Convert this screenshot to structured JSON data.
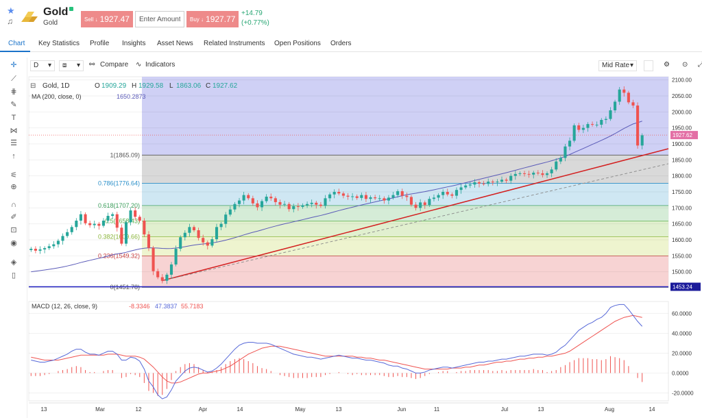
{
  "header": {
    "title": "Gold",
    "subtitle": "Gold",
    "sell_prefix": "Sell ↓",
    "sell_price": "1927.47",
    "amount_placeholder": "Enter Amount",
    "buy_prefix": "Buy ↓",
    "buy_price": "1927.77",
    "change_abs": "+14.79",
    "change_pct": "(+0.77%)"
  },
  "tabs": [
    {
      "label": "Chart"
    },
    {
      "label": "Key Statistics"
    },
    {
      "label": "Profile"
    },
    {
      "label": "Insights"
    },
    {
      "label": "Asset News"
    },
    {
      "label": "Related Instruments"
    },
    {
      "label": "Open Positions"
    },
    {
      "label": "Orders"
    }
  ],
  "toolbar": {
    "interval": "D",
    "compare_label": "Compare",
    "indicators_label": "Indicators",
    "rate_label": "Mid Rate"
  },
  "colors": {
    "up": "#26a69a",
    "down": "#ef5350",
    "accent": "#1a73c9",
    "trend": "#d32020",
    "ma": "#5a5ab8",
    "macd": "#5668d8",
    "signal": "#ef5350"
  },
  "chart_data": [
    {
      "type": "candlestick",
      "legend": {
        "symbol": "Gold, 1D",
        "open_label": "O",
        "open": "1909.29",
        "high_label": "H",
        "high": "1929.58",
        "low_label": "L",
        "low": "1863.06",
        "close_label": "C",
        "close": "1927.62"
      },
      "ma_label": "MA (200, close, 0)",
      "ma_value": "1650.2873",
      "y_ticks": [
        "2100.00",
        "2050.00",
        "2000.00",
        "1950.00",
        "1900.00",
        "1850.00",
        "1800.00",
        "1750.00",
        "1700.00",
        "1650.00",
        "1600.00",
        "1550.00",
        "1500.00"
      ],
      "ylim": [
        1450,
        2110
      ],
      "last_price_label": "1927.62",
      "last_price": 1927.62,
      "low_line_label": "1453.24",
      "low_line": 1453.24,
      "fib_levels": [
        {
          "label": "1(1865.09)",
          "value": 1865.09,
          "fill": "#d9d9d9"
        },
        {
          "label": "0.786(1776.64)",
          "value": 1776.64,
          "fill": "#cfe7f3"
        },
        {
          "label": "0.618(1707.20)",
          "value": 1707.2,
          "fill": "#d5ecd7"
        },
        {
          "label": "0.5(1658.43)",
          "value": 1658.43,
          "fill": "#e1f0cf"
        },
        {
          "label": "0.382(1609.66)",
          "value": 1609.66,
          "fill": "#eef4cf"
        },
        {
          "label": "0.236(1549.32)",
          "value": 1549.32,
          "fill": "#f7d3d3"
        },
        {
          "label": "0(1451.78)",
          "value": 1451.78,
          "fill": ""
        }
      ],
      "closes": [
        1572,
        1566,
        1570,
        1574,
        1580,
        1586,
        1597,
        1612,
        1624,
        1640,
        1660,
        1680,
        1652,
        1646,
        1650,
        1644,
        1660,
        1675,
        1680,
        1638,
        1588,
        1655,
        1692,
        1672,
        1660,
        1617,
        1575,
        1502,
        1483,
        1472,
        1491,
        1523,
        1572,
        1608,
        1622,
        1640,
        1630,
        1606,
        1592,
        1582,
        1602,
        1640,
        1650,
        1679,
        1695,
        1712,
        1723,
        1740,
        1730,
        1714,
        1702,
        1721,
        1735,
        1730,
        1718,
        1710,
        1712,
        1696,
        1705,
        1703,
        1708,
        1712,
        1716,
        1710,
        1706,
        1730,
        1742,
        1750,
        1745,
        1738,
        1735,
        1736,
        1731,
        1740,
        1728,
        1733,
        1730,
        1730,
        1723,
        1732,
        1740,
        1752,
        1738,
        1734,
        1710,
        1700,
        1717,
        1709,
        1728,
        1732,
        1740,
        1750,
        1742,
        1738,
        1756,
        1764,
        1770,
        1773,
        1780,
        1776,
        1775,
        1782,
        1780,
        1782,
        1788,
        1785,
        1800,
        1806,
        1808,
        1806,
        1804,
        1810,
        1808,
        1803,
        1808,
        1820,
        1845,
        1856,
        1892,
        1910,
        1958,
        1944,
        1950,
        1962,
        1960,
        1960,
        1975,
        1978,
        2005,
        2032,
        2070,
        2060,
        2030,
        2020,
        1895,
        1927
      ],
      "annotations": [
        "trend-line-red",
        "trend-line-dashed",
        "fibonacci-retracement"
      ]
    },
    {
      "type": "line",
      "title": "MACD (12, 26, close, 9)",
      "values_display": [
        "-8.3346",
        "47.3837",
        "55.7183"
      ],
      "y_ticks": [
        "60.0000",
        "40.0000",
        "20.0000",
        "0.0000",
        "-20.0000"
      ],
      "ylim": [
        -28,
        72
      ],
      "series": [
        {
          "name": "MACD",
          "values": [
            13,
            12,
            11,
            11,
            12,
            13,
            15,
            17,
            19,
            22,
            24,
            24,
            21,
            19,
            19,
            18,
            20,
            22,
            22,
            19,
            13,
            13,
            16,
            15,
            12,
            4,
            -8,
            -14,
            -22,
            -26,
            -24,
            -17,
            -8,
            -3,
            2,
            5,
            6,
            5,
            3,
            1,
            2,
            5,
            9,
            14,
            19,
            24,
            28,
            30,
            31,
            31,
            30,
            30,
            30,
            29,
            27,
            25,
            23,
            21,
            19,
            18,
            17,
            16,
            16,
            15,
            14,
            15,
            16,
            17,
            18,
            17,
            16,
            15,
            15,
            14,
            13,
            13,
            12,
            11,
            10,
            8,
            7,
            7,
            5,
            4,
            2,
            0,
            0,
            1,
            3,
            4,
            5,
            6,
            6,
            5,
            6,
            7,
            8,
            9,
            10,
            11,
            11,
            12,
            12,
            13,
            14,
            14,
            15,
            16,
            17,
            17,
            18,
            19,
            19,
            19,
            18,
            19,
            21,
            25,
            28,
            33,
            38,
            43,
            46,
            49,
            51,
            54,
            56,
            60,
            66,
            68,
            69,
            69,
            64,
            58,
            52,
            47
          ]
        },
        {
          "name": "Signal",
          "values": [
            16,
            15,
            14,
            13,
            13,
            13,
            13,
            14,
            15,
            16,
            17,
            18,
            18,
            18,
            18,
            18,
            18,
            19,
            19,
            19,
            18,
            17,
            17,
            17,
            16,
            14,
            10,
            6,
            1,
            -4,
            -8,
            -10,
            -10,
            -9,
            -7,
            -5,
            -3,
            -1,
            0,
            0,
            1,
            2,
            3,
            5,
            7,
            10,
            13,
            16,
            19,
            21,
            23,
            25,
            26,
            27,
            27,
            27,
            26,
            25,
            24,
            23,
            22,
            21,
            20,
            19,
            18,
            17,
            17,
            17,
            17,
            17,
            17,
            17,
            16,
            16,
            15,
            15,
            14,
            13,
            13,
            12,
            11,
            10,
            9,
            8,
            7,
            6,
            5,
            4,
            4,
            4,
            4,
            4,
            4,
            5,
            5,
            5,
            6,
            6,
            7,
            8,
            8,
            9,
            10,
            11,
            11,
            12,
            12,
            13,
            14,
            14,
            15,
            15,
            16,
            16,
            17,
            17,
            18,
            19,
            20,
            22,
            25,
            28,
            31,
            34,
            37,
            40,
            43,
            46,
            49,
            52,
            54,
            56,
            57,
            58,
            57,
            56
          ]
        }
      ],
      "histogram_note": "MACD minus Signal"
    }
  ],
  "x_ticks": [
    "13",
    "Mar",
    "12",
    "Apr",
    "14",
    "May",
    "13",
    "Jun",
    "11",
    "Jul",
    "13",
    "Aug",
    "14"
  ]
}
